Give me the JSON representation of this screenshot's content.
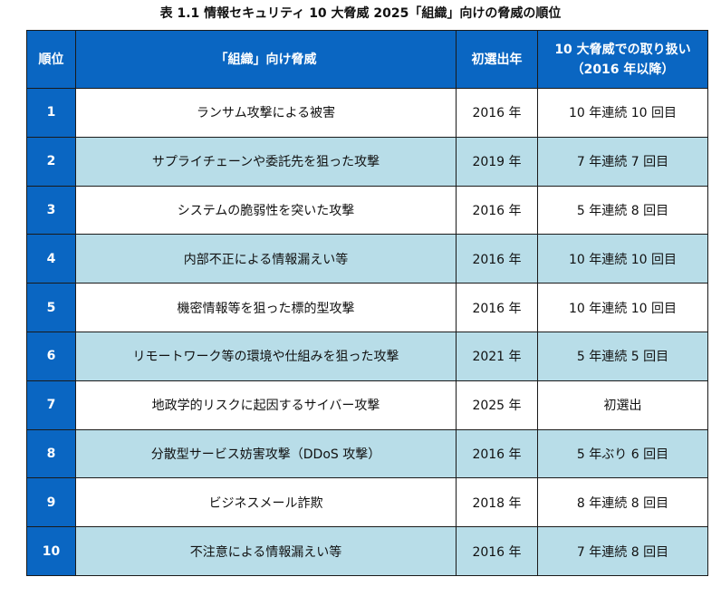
{
  "title": "表 1.1  情報セキュリティ 10 大脅威  2025「組織」向けの脅威の順位",
  "colors": {
    "header_bg": "#0a66c2",
    "alt_row_bg": "#b8dde8"
  },
  "table": {
    "headers": [
      "順位",
      "「組織」向け脅威",
      "初選出年",
      "10 大脅威での取り扱い",
      "（2016 年以降）"
    ],
    "rows": [
      {
        "rank": "1",
        "threat": "ランサム攻撃による被害",
        "year": "2016 年",
        "history": "10 年連続 10 回目"
      },
      {
        "rank": "2",
        "threat": "サプライチェーンや委託先を狙った攻撃",
        "year": "2019 年",
        "history": "7 年連続 7 回目"
      },
      {
        "rank": "3",
        "threat": "システムの脆弱性を突いた攻撃",
        "year": "2016 年",
        "history": "5 年連続 8 回目"
      },
      {
        "rank": "4",
        "threat": "内部不正による情報漏えい等",
        "year": "2016 年",
        "history": "10 年連続 10 回目"
      },
      {
        "rank": "5",
        "threat": "機密情報等を狙った標的型攻撃",
        "year": "2016 年",
        "history": "10 年連続 10 回目"
      },
      {
        "rank": "6",
        "threat": "リモートワーク等の環境や仕組みを狙った攻撃",
        "year": "2021 年",
        "history": "5 年連続 5 回目"
      },
      {
        "rank": "7",
        "threat": "地政学的リスクに起因するサイバー攻撃",
        "year": "2025 年",
        "history": "初選出"
      },
      {
        "rank": "8",
        "threat": "分散型サービス妨害攻撃（DDoS 攻撃）",
        "year": "2016 年",
        "history": "5 年ぶり 6 回目"
      },
      {
        "rank": "9",
        "threat": "ビジネスメール詐欺",
        "year": "2018 年",
        "history": "8 年連続 8 回目"
      },
      {
        "rank": "10",
        "threat": "不注意による情報漏えい等",
        "year": "2016 年",
        "history": "7 年連続 8 回目"
      }
    ]
  }
}
